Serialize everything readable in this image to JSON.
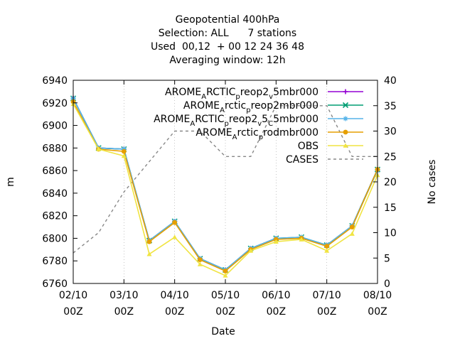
{
  "chart_data": {
    "type": "line",
    "title_lines": [
      "Geopotential 400hPa",
      "Selection: ALL      7 stations",
      "Used  00,12  + 00 12 24 36 48",
      "Averaging window: 12h"
    ],
    "xlabel": "Date",
    "ylabel": "m",
    "y2label": "No cases",
    "x_ticks": [
      {
        "x": 0,
        "line1": "02/10",
        "line2": "00Z"
      },
      {
        "x": 1,
        "line1": "03/10",
        "line2": "00Z"
      },
      {
        "x": 2,
        "line1": "04/10",
        "line2": "00Z"
      },
      {
        "x": 3,
        "line1": "05/10",
        "line2": "00Z"
      },
      {
        "x": 4,
        "line1": "06/10",
        "line2": "00Z"
      },
      {
        "x": 5,
        "line1": "07/10",
        "line2": "00Z"
      },
      {
        "x": 6,
        "line1": "08/10",
        "line2": "00Z"
      }
    ],
    "xlim": [
      0,
      6
    ],
    "ylim": [
      6760,
      6940
    ],
    "y_ticks": [
      6760,
      6780,
      6800,
      6820,
      6840,
      6860,
      6880,
      6900,
      6920,
      6940
    ],
    "y2lim": [
      0,
      40
    ],
    "y2_ticks": [
      0,
      5,
      10,
      15,
      20,
      25,
      30,
      35,
      40
    ],
    "x": [
      0,
      0.5,
      1,
      1.5,
      2,
      2.5,
      3,
      3.5,
      4,
      4.5,
      5,
      5.5,
      6
    ],
    "legend_position": "top-right",
    "series": [
      {
        "name_parts": [
          {
            "t": "AROME"
          },
          {
            "t": "A",
            "sub": true
          },
          {
            "t": "RCTIC"
          },
          {
            "t": "p",
            "sub": true
          },
          {
            "t": "reop2"
          },
          {
            "t": "v",
            "sub": true
          },
          {
            "t": "5mbr000"
          }
        ],
        "color": "#9400d3",
        "marker": "plus",
        "axis": "y",
        "values": [
          6924,
          6880,
          6879,
          6798,
          6815,
          6782,
          6772,
          6791,
          6800,
          6800,
          6794,
          6811,
          6861
        ]
      },
      {
        "name_parts": [
          {
            "t": "AROME"
          },
          {
            "t": "A",
            "sub": true
          },
          {
            "t": "rctic"
          },
          {
            "t": "p",
            "sub": true
          },
          {
            "t": "reop2mbr000"
          }
        ],
        "color": "#009e73",
        "marker": "cross",
        "axis": "y",
        "values": [
          6924,
          6880,
          6879,
          6798,
          6815,
          6782,
          6772,
          6791,
          6800,
          6801,
          6794,
          6811,
          6861
        ]
      },
      {
        "name_parts": [
          {
            "t": "AROME"
          },
          {
            "t": "A",
            "sub": true
          },
          {
            "t": "RCTIC"
          },
          {
            "t": "p",
            "sub": true
          },
          {
            "t": "reop2"
          },
          {
            "t": "v",
            "sub": true
          },
          {
            "t": "5"
          },
          {
            "t": "C",
            "sub": true
          },
          {
            "t": "5mbr000"
          }
        ],
        "color": "#56b4e9",
        "marker": "star",
        "axis": "y",
        "values": [
          6924,
          6880,
          6879,
          6798,
          6815,
          6782,
          6772,
          6791,
          6800,
          6801,
          6794,
          6811,
          6860
        ]
      },
      {
        "name_parts": [
          {
            "t": "AROME"
          },
          {
            "t": "A",
            "sub": true
          },
          {
            "t": "rctic"
          },
          {
            "t": "p",
            "sub": true
          },
          {
            "t": "rodmbr000"
          }
        ],
        "color": "#e69f00",
        "marker": "dot",
        "axis": "y",
        "values": [
          6921,
          6879,
          6877,
          6797,
          6814,
          6781,
          6771,
          6790,
          6799,
          6800,
          6793,
          6810,
          6861
        ]
      },
      {
        "name_parts": [
          {
            "t": "OBS"
          }
        ],
        "color": "#f0e442",
        "marker": "triangle",
        "axis": "y",
        "values": [
          6919,
          6879,
          6873,
          6786,
          6801,
          6777,
          6767,
          6789,
          6797,
          6799,
          6789,
          6804,
          6856
        ]
      },
      {
        "name_parts": [
          {
            "t": "CASES"
          }
        ],
        "color": "#888888",
        "marker": "none",
        "dashed": true,
        "axis": "y2",
        "values": [
          6,
          10,
          18,
          24,
          30,
          30,
          25,
          25,
          35,
          35,
          35,
          25,
          25
        ]
      }
    ]
  }
}
